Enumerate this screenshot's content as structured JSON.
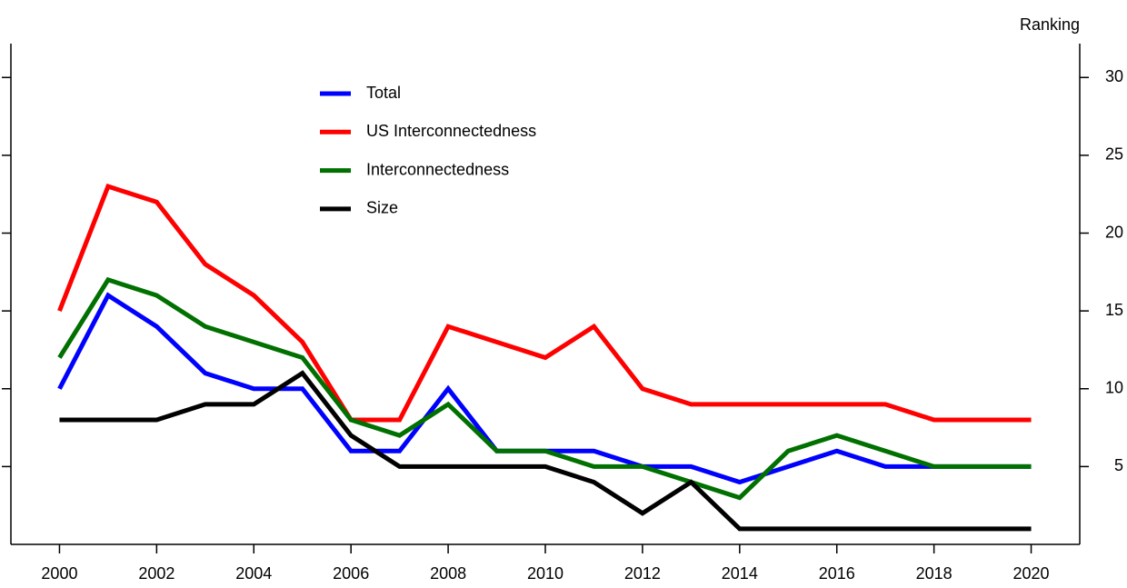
{
  "chart_data": {
    "type": "line",
    "y_label": "Ranking",
    "x": [
      2000,
      2001,
      2002,
      2003,
      2004,
      2005,
      2006,
      2007,
      2008,
      2009,
      2010,
      2011,
      2012,
      2013,
      2014,
      2015,
      2016,
      2017,
      2018,
      2019,
      2020
    ],
    "series": [
      {
        "name": "Total",
        "color": "#0000ff",
        "values": [
          10,
          16,
          14,
          11,
          10,
          10,
          6,
          6,
          10,
          6,
          6,
          6,
          5,
          5,
          4,
          5,
          6,
          5,
          5,
          5,
          5
        ]
      },
      {
        "name": "US Interconnectedness",
        "color": "#ff0000",
        "values": [
          15,
          23,
          22,
          18,
          16,
          13,
          8,
          8,
          14,
          13,
          12,
          14,
          10,
          9,
          9,
          9,
          9,
          9,
          8,
          8,
          8
        ]
      },
      {
        "name": "Interconnectedness",
        "color": "#007000",
        "values": [
          12,
          17,
          16,
          14,
          13,
          12,
          8,
          7,
          9,
          6,
          6,
          5,
          5,
          4,
          3,
          6,
          7,
          6,
          5,
          5,
          5
        ]
      },
      {
        "name": "Size",
        "color": "#000000",
        "values": [
          8,
          8,
          8,
          9,
          9,
          11,
          7,
          5,
          5,
          5,
          5,
          4,
          2,
          4,
          1,
          1,
          1,
          1,
          1,
          1,
          1
        ]
      }
    ],
    "xlim": [
      1999,
      2021
    ],
    "xticks": [
      2000,
      2002,
      2004,
      2006,
      2008,
      2010,
      2012,
      2014,
      2016,
      2018,
      2020
    ],
    "ylim": [
      0,
      32
    ],
    "yticks": [
      5,
      10,
      15,
      20,
      25,
      30
    ],
    "grid": false,
    "legend": "upper-left"
  }
}
